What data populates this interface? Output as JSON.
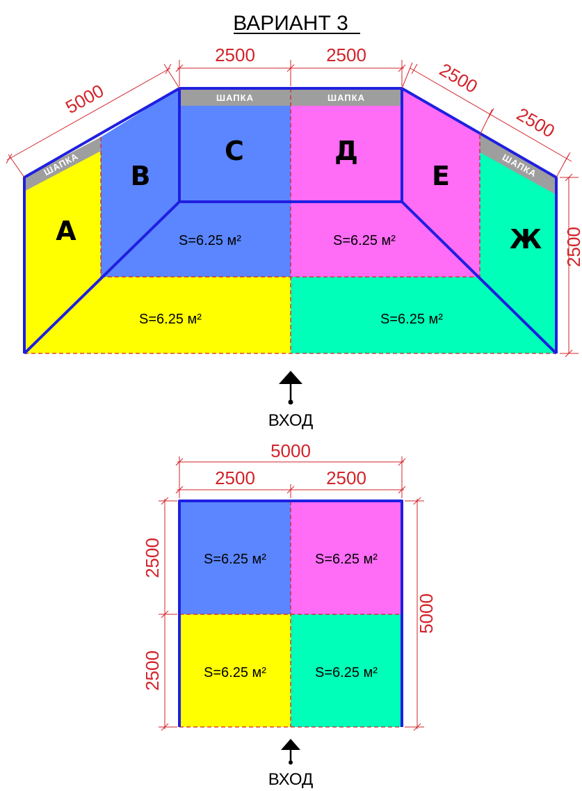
{
  "title": "ВАРИАНТ 3",
  "colors": {
    "yellow": "#ffff00",
    "blue": "#5b86ff",
    "pink": "#ff6cf6",
    "green": "#00ffb8",
    "cap": "#9e9e9e",
    "outline": "#1f1fe0",
    "dimension": "#d2232a"
  },
  "top": {
    "walls": {
      "a": "А",
      "b": "В",
      "c": "С",
      "d": "Д",
      "e": "Е",
      "zh": "Ж"
    },
    "cap_label": "ШАПКА",
    "areas": {
      "back_left": "S=6.25 м²",
      "back_right": "S=6.25 м²",
      "front_left": "S=6.25 м²",
      "front_right": "S=6.25 м²"
    },
    "dims": {
      "left_slant": "5000",
      "top_left": "2500",
      "top_right": "2500",
      "right_slant_1": "2500",
      "right_slant_2": "2500",
      "right_height": "2500"
    },
    "entry": "ВХОД"
  },
  "bottom": {
    "dims": {
      "total_width": "5000",
      "left_width": "2500",
      "right_width": "2500",
      "upper_height": "2500",
      "lower_height": "2500",
      "total_height": "5000"
    },
    "areas": {
      "top_left": "S=6.25 м²",
      "top_right": "S=6.25 м²",
      "bottom_left": "S=6.25 м²",
      "bottom_right": "S=6.25 м²"
    },
    "entry": "ВХОД"
  }
}
